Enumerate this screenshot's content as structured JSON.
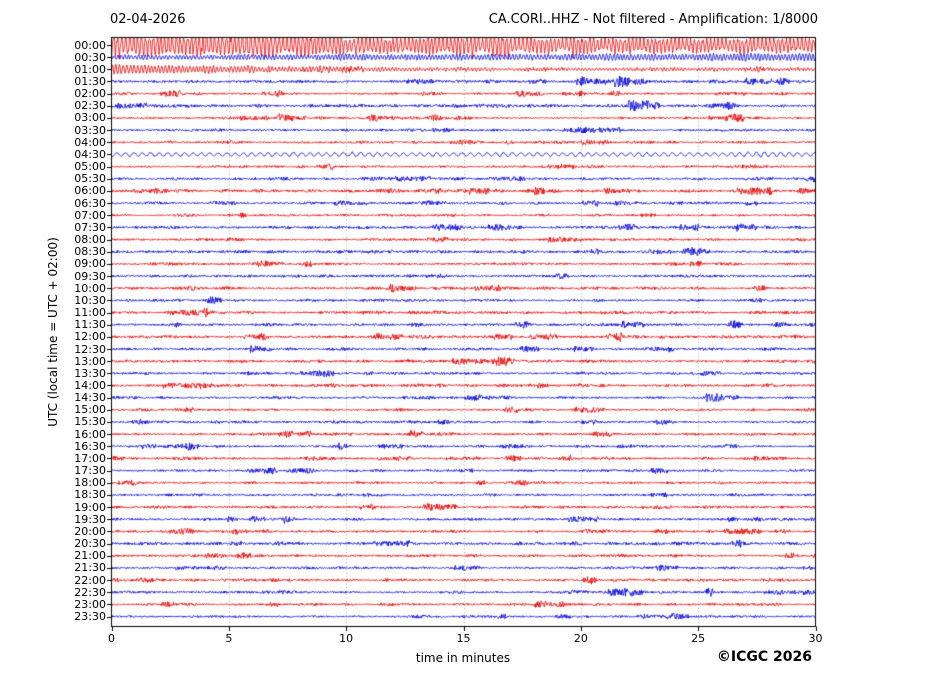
{
  "footer": {
    "copyright": "©ICGC 2026"
  },
  "chart_data": {
    "type": "line",
    "subtype": "helicorder-daily-seismogram",
    "title_left": "02-04-2026",
    "title_right": "CA.CORI..HHZ - Not filtered - Amplification: 1/8000",
    "station": "CA.CORI..HHZ",
    "filter": "Not filtered",
    "amplification": "1/8000",
    "xlabel": "time in minutes",
    "ylabel": "UTC (local time = UTC + 02:00)",
    "xlim": [
      0,
      30
    ],
    "xticks": [
      0,
      5,
      10,
      15,
      20,
      25,
      30
    ],
    "minutes_per_row": 30,
    "grid": {
      "vertical_dotted_at": [
        5,
        10,
        15,
        20,
        25
      ],
      "horizontal": false
    },
    "colors": {
      "red": "#ee0000",
      "blue": "#0000dd",
      "frame": "#000000",
      "grid": "#999999"
    },
    "rows": [
      {
        "label": "00:00",
        "color": "red",
        "amp": 6.5,
        "style": "storm-wave"
      },
      {
        "label": "00:30",
        "color": "blue",
        "amp": 2.8,
        "style": "wave"
      },
      {
        "label": "01:00",
        "color": "red",
        "amp": 3.6,
        "style": "decay-wave"
      },
      {
        "label": "01:30",
        "color": "blue",
        "amp": 1.4,
        "style": "noise"
      },
      {
        "label": "02:00",
        "color": "red",
        "amp": 1.2,
        "style": "noise"
      },
      {
        "label": "02:30",
        "color": "blue",
        "amp": 1.5,
        "style": "noise"
      },
      {
        "label": "03:00",
        "color": "red",
        "amp": 1.1,
        "style": "noise"
      },
      {
        "label": "03:30",
        "color": "blue",
        "amp": 1.2,
        "style": "noise"
      },
      {
        "label": "04:00",
        "color": "red",
        "amp": 1.2,
        "style": "noise"
      },
      {
        "label": "04:30",
        "color": "blue",
        "amp": 1.7,
        "style": "smooth-wave"
      },
      {
        "label": "05:00",
        "color": "red",
        "amp": 1.2,
        "style": "noise"
      },
      {
        "label": "05:30",
        "color": "blue",
        "amp": 1.2,
        "style": "noise"
      },
      {
        "label": "06:00",
        "color": "red",
        "amp": 1.4,
        "style": "noise"
      },
      {
        "label": "06:30",
        "color": "blue",
        "amp": 1.2,
        "style": "noise"
      },
      {
        "label": "07:00",
        "color": "red",
        "amp": 1.1,
        "style": "noise"
      },
      {
        "label": "07:30",
        "color": "blue",
        "amp": 1.3,
        "style": "noise"
      },
      {
        "label": "08:00",
        "color": "red",
        "amp": 1.2,
        "style": "noise"
      },
      {
        "label": "08:30",
        "color": "blue",
        "amp": 1.4,
        "style": "noise"
      },
      {
        "label": "09:00",
        "color": "red",
        "amp": 1.2,
        "style": "noise"
      },
      {
        "label": "09:30",
        "color": "blue",
        "amp": 1.3,
        "style": "noise"
      },
      {
        "label": "10:00",
        "color": "red",
        "amp": 1.3,
        "style": "noise"
      },
      {
        "label": "10:30",
        "color": "blue",
        "amp": 1.2,
        "style": "noise"
      },
      {
        "label": "11:00",
        "color": "red",
        "amp": 1.4,
        "style": "noise"
      },
      {
        "label": "11:30",
        "color": "blue",
        "amp": 1.3,
        "style": "noise"
      },
      {
        "label": "12:00",
        "color": "red",
        "amp": 1.5,
        "style": "noise"
      },
      {
        "label": "12:30",
        "color": "blue",
        "amp": 1.2,
        "style": "noise"
      },
      {
        "label": "13:00",
        "color": "red",
        "amp": 1.4,
        "style": "noise"
      },
      {
        "label": "13:30",
        "color": "blue",
        "amp": 1.2,
        "style": "noise"
      },
      {
        "label": "14:00",
        "color": "red",
        "amp": 1.4,
        "style": "noise"
      },
      {
        "label": "14:30",
        "color": "blue",
        "amp": 1.2,
        "style": "noise"
      },
      {
        "label": "15:00",
        "color": "red",
        "amp": 1.3,
        "style": "noise"
      },
      {
        "label": "15:30",
        "color": "blue",
        "amp": 1.1,
        "style": "noise"
      },
      {
        "label": "16:00",
        "color": "red",
        "amp": 1.3,
        "style": "noise"
      },
      {
        "label": "16:30",
        "color": "blue",
        "amp": 1.1,
        "style": "noise"
      },
      {
        "label": "17:00",
        "color": "red",
        "amp": 1.3,
        "style": "noise"
      },
      {
        "label": "17:30",
        "color": "blue",
        "amp": 1.2,
        "style": "noise"
      },
      {
        "label": "18:00",
        "color": "red",
        "amp": 1.2,
        "style": "noise"
      },
      {
        "label": "18:30",
        "color": "blue",
        "amp": 1.1,
        "style": "noise"
      },
      {
        "label": "19:00",
        "color": "red",
        "amp": 1.3,
        "style": "noise"
      },
      {
        "label": "19:30",
        "color": "blue",
        "amp": 1.2,
        "style": "noise"
      },
      {
        "label": "20:00",
        "color": "red",
        "amp": 1.3,
        "style": "noise"
      },
      {
        "label": "20:30",
        "color": "blue",
        "amp": 1.4,
        "style": "noise"
      },
      {
        "label": "21:00",
        "color": "red",
        "amp": 1.3,
        "style": "noise"
      },
      {
        "label": "21:30",
        "color": "blue",
        "amp": 1.2,
        "style": "noise"
      },
      {
        "label": "22:00",
        "color": "red",
        "amp": 1.3,
        "style": "noise"
      },
      {
        "label": "22:30",
        "color": "blue",
        "amp": 1.2,
        "style": "noise"
      },
      {
        "label": "23:00",
        "color": "red",
        "amp": 1.2,
        "style": "noise"
      },
      {
        "label": "23:30",
        "color": "blue",
        "amp": 1.1,
        "style": "noise"
      }
    ]
  }
}
